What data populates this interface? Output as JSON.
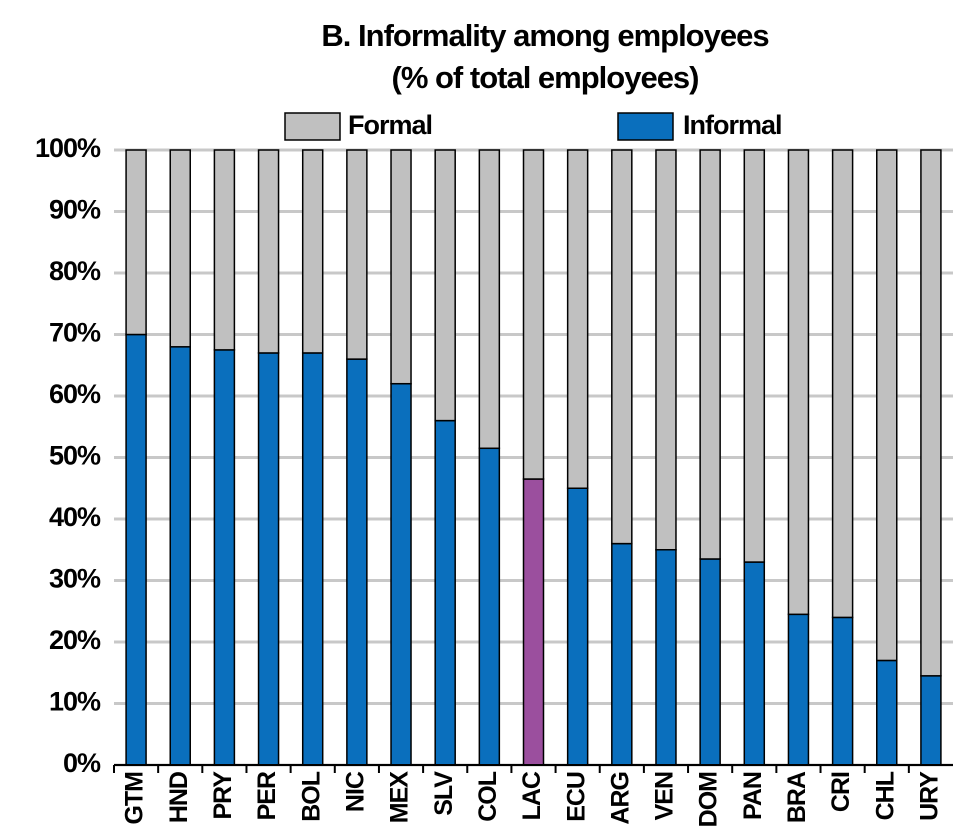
{
  "chart_data": {
    "type": "stacked_bar",
    "title": "B. Informality among employees",
    "subtitle": "(% of total employees)",
    "categories": [
      "GTM",
      "HND",
      "PRY",
      "PER",
      "BOL",
      "NIC",
      "MEX",
      "SLV",
      "COL",
      "LAC",
      "ECU",
      "ARG",
      "VEN",
      "DOM",
      "PAN",
      "BRA",
      "CRI",
      "CHL",
      "URY"
    ],
    "series": [
      {
        "name": "Informal",
        "color": "#0a6fbd",
        "colors": [
          "#0a6fbd",
          "#0a6fbd",
          "#0a6fbd",
          "#0a6fbd",
          "#0a6fbd",
          "#0a6fbd",
          "#0a6fbd",
          "#0a6fbd",
          "#0a6fbd",
          "#9b4f9e",
          "#0a6fbd",
          "#0a6fbd",
          "#0a6fbd",
          "#0a6fbd",
          "#0a6fbd",
          "#0a6fbd",
          "#0a6fbd",
          "#0a6fbd",
          "#0a6fbd"
        ],
        "values": [
          70,
          68,
          67.5,
          67,
          67,
          66,
          62,
          56,
          51.5,
          46.5,
          45,
          36,
          35,
          33.5,
          33,
          24.5,
          24,
          17,
          14.5
        ]
      },
      {
        "name": "Formal",
        "color": "#c0c0c0",
        "values": [
          30,
          32,
          32.5,
          33,
          33,
          34,
          38,
          44,
          48.5,
          53.5,
          55,
          64,
          65,
          66.5,
          67,
          75.5,
          76,
          83,
          85.5
        ]
      }
    ],
    "ylim": [
      0,
      100
    ],
    "yticks": [
      {
        "value": 0,
        "label": "0%"
      },
      {
        "value": 10,
        "label": "10%"
      },
      {
        "value": 20,
        "label": "20%"
      },
      {
        "value": 30,
        "label": "30%"
      },
      {
        "value": 40,
        "label": "40%"
      },
      {
        "value": 50,
        "label": "50%"
      },
      {
        "value": 60,
        "label": "60%"
      },
      {
        "value": 70,
        "label": "70%"
      },
      {
        "value": 80,
        "label": "80%"
      },
      {
        "value": 90,
        "label": "90%"
      },
      {
        "value": 100,
        "label": "100%"
      }
    ],
    "grid": true,
    "legend": "top"
  }
}
